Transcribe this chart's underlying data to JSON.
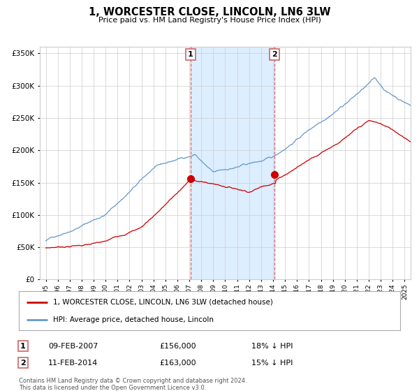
{
  "title": "1, WORCESTER CLOSE, LINCOLN, LN6 3LW",
  "subtitle": "Price paid vs. HM Land Registry's House Price Index (HPI)",
  "legend_line1": "1, WORCESTER CLOSE, LINCOLN, LN6 3LW (detached house)",
  "legend_line2": "HPI: Average price, detached house, Lincoln",
  "footnote": "Contains HM Land Registry data © Crown copyright and database right 2024.\nThis data is licensed under the Open Government Licence v3.0.",
  "red_color": "#cc0000",
  "blue_color": "#6699cc",
  "shading_color": "#ddeeff",
  "vline_color": "#cc6666",
  "background_color": "#ffffff",
  "grid_color": "#cccccc",
  "purchase1": {
    "date_num": 2007.1,
    "price": 156000,
    "label": "1",
    "date_str": "09-FEB-2007",
    "pct": "18% ↓ HPI"
  },
  "purchase2": {
    "date_num": 2014.12,
    "price": 163000,
    "label": "2",
    "date_str": "11-FEB-2014",
    "pct": "15% ↓ HPI"
  },
  "ylim": [
    0,
    360000
  ],
  "xlim_start": 1994.5,
  "xlim_end": 2025.5
}
